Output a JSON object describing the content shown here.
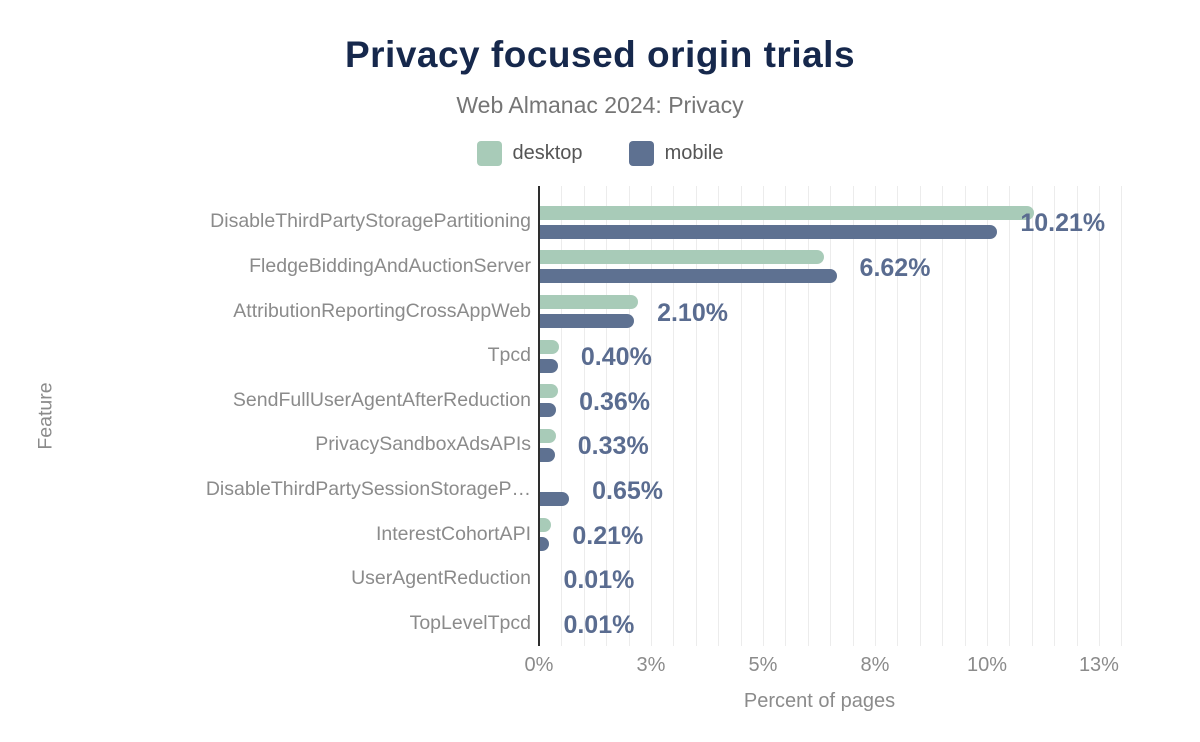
{
  "colors": {
    "title": "#16284c",
    "subtitle": "#757575",
    "legend_text": "#555555",
    "axis_text": "#8b8b8b",
    "value_label": "#5a6c90",
    "axis_line": "#2e2e2e",
    "gridline": "#ececec",
    "desktop": "#a8cbb8",
    "mobile": "#5e7191"
  },
  "chart_data": {
    "type": "bar",
    "orientation": "horizontal",
    "title": "Privacy focused origin trials",
    "subtitle": "Web Almanac 2024: Privacy",
    "xlabel": "Percent of pages",
    "ylabel": "Feature",
    "legend_position": "top",
    "grid": "minor-vertical",
    "grid_step": 0.5,
    "xlim": [
      0,
      13.55
    ],
    "categories": [
      "DisableThirdPartyStoragePartitioning",
      "FledgeBiddingAndAuctionServer",
      "AttributionReportingCrossAppWeb",
      "Tpcd",
      "SendFullUserAgentAfterReduction",
      "PrivacySandboxAdsAPIs",
      "DisableThirdPartySessionStorageP…",
      "InterestCohortAPI",
      "UserAgentReduction",
      "TopLevelTpcd"
    ],
    "series": [
      {
        "name": "desktop",
        "color": "#a8cbb8",
        "values": [
          11.02,
          6.35,
          2.18,
          0.43,
          0.4,
          0.35,
          0.0,
          0.25,
          0.01,
          0.01
        ]
      },
      {
        "name": "mobile",
        "color": "#5e7191",
        "values": [
          10.21,
          6.62,
          2.1,
          0.4,
          0.36,
          0.33,
          0.65,
          0.21,
          0.01,
          0.01
        ]
      }
    ],
    "value_labels": [
      "10.21%",
      "6.62%",
      "2.10%",
      "0.40%",
      "0.36%",
      "0.33%",
      "0.65%",
      "0.21%",
      "0.01%",
      "0.01%"
    ],
    "value_labels_series": "mobile",
    "x_ticks": [
      {
        "value": 0,
        "label": "0%"
      },
      {
        "value": 2.5,
        "label": "3%"
      },
      {
        "value": 5,
        "label": "5%"
      },
      {
        "value": 7.5,
        "label": "8%"
      },
      {
        "value": 10,
        "label": "10%"
      },
      {
        "value": 12.5,
        "label": "13%"
      }
    ]
  }
}
